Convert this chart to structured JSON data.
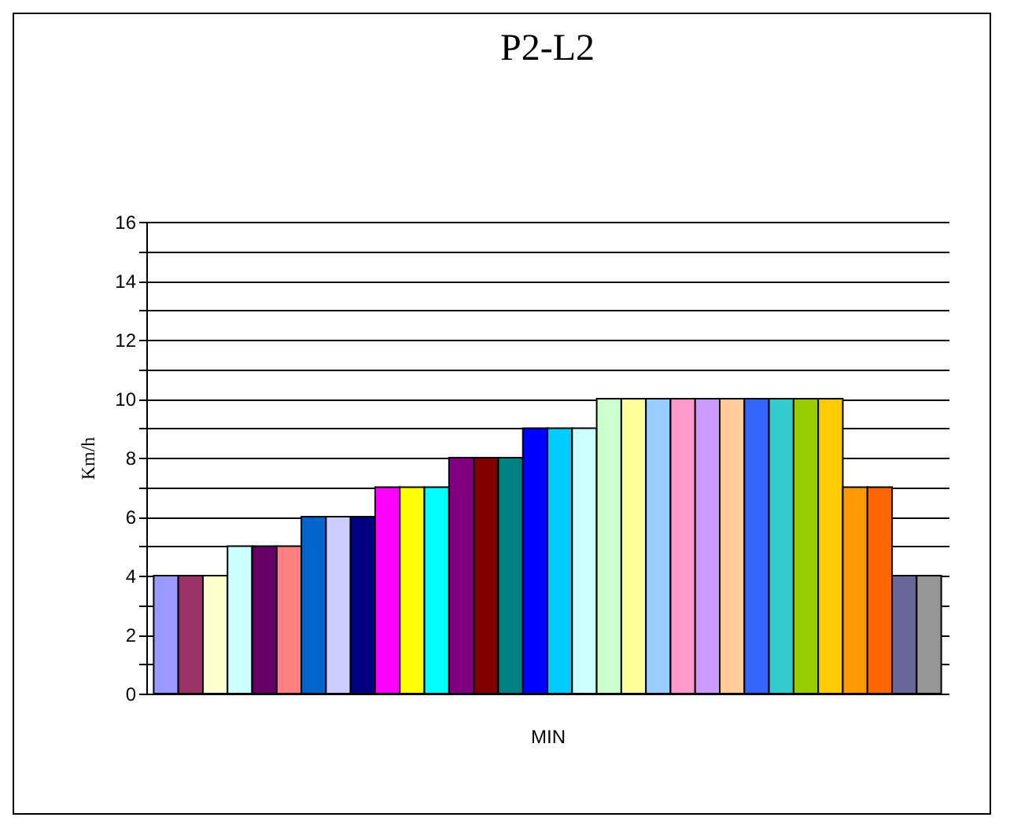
{
  "chart_data": {
    "type": "bar",
    "title": "P2-L2",
    "xlabel": "MIN",
    "ylabel": "Km/h",
    "categories": [
      null,
      null,
      null,
      null,
      null,
      null,
      null,
      null,
      null,
      null,
      null,
      null,
      null,
      null,
      null,
      null,
      null,
      null,
      null,
      null,
      null,
      null,
      null,
      null,
      null,
      null,
      null,
      null,
      null,
      null,
      null,
      null
    ],
    "values": [
      4,
      4,
      4,
      5,
      5,
      5,
      6,
      6,
      6,
      7,
      7,
      7,
      8,
      8,
      8,
      9,
      9,
      9,
      10,
      10,
      10,
      10,
      10,
      10,
      10,
      10,
      10,
      10,
      7,
      7,
      4,
      4
    ],
    "colors": [
      "#9999ff",
      "#993366",
      "#ffffcc",
      "#ccffff",
      "#660066",
      "#ff8080",
      "#0066cc",
      "#ccccff",
      "#000080",
      "#ff00ff",
      "#ffff00",
      "#00ffff",
      "#800080",
      "#800000",
      "#008080",
      "#0000ff",
      "#00ccff",
      "#ccffff",
      "#ccffcc",
      "#ffff99",
      "#99ccff",
      "#ff99cc",
      "#cc99ff",
      "#ffcc99",
      "#3366ff",
      "#33cccc",
      "#99cc00",
      "#ffcc00",
      "#ff9900",
      "#ff6600",
      "#666699",
      "#969696"
    ],
    "ylim": [
      0,
      16
    ],
    "yticks": [
      0,
      {
        "value": 1,
        "label": null
      },
      2,
      {
        "value": 3,
        "label": null
      },
      4,
      {
        "value": 5,
        "label": null
      },
      6,
      {
        "value": 7,
        "label": null
      },
      8,
      {
        "value": 9,
        "label": null
      },
      10,
      {
        "value": 11,
        "label": null
      },
      12,
      {
        "value": 13,
        "label": null
      },
      14,
      {
        "value": 15,
        "label": null
      },
      16
    ],
    "grid": "y",
    "legend": false
  }
}
